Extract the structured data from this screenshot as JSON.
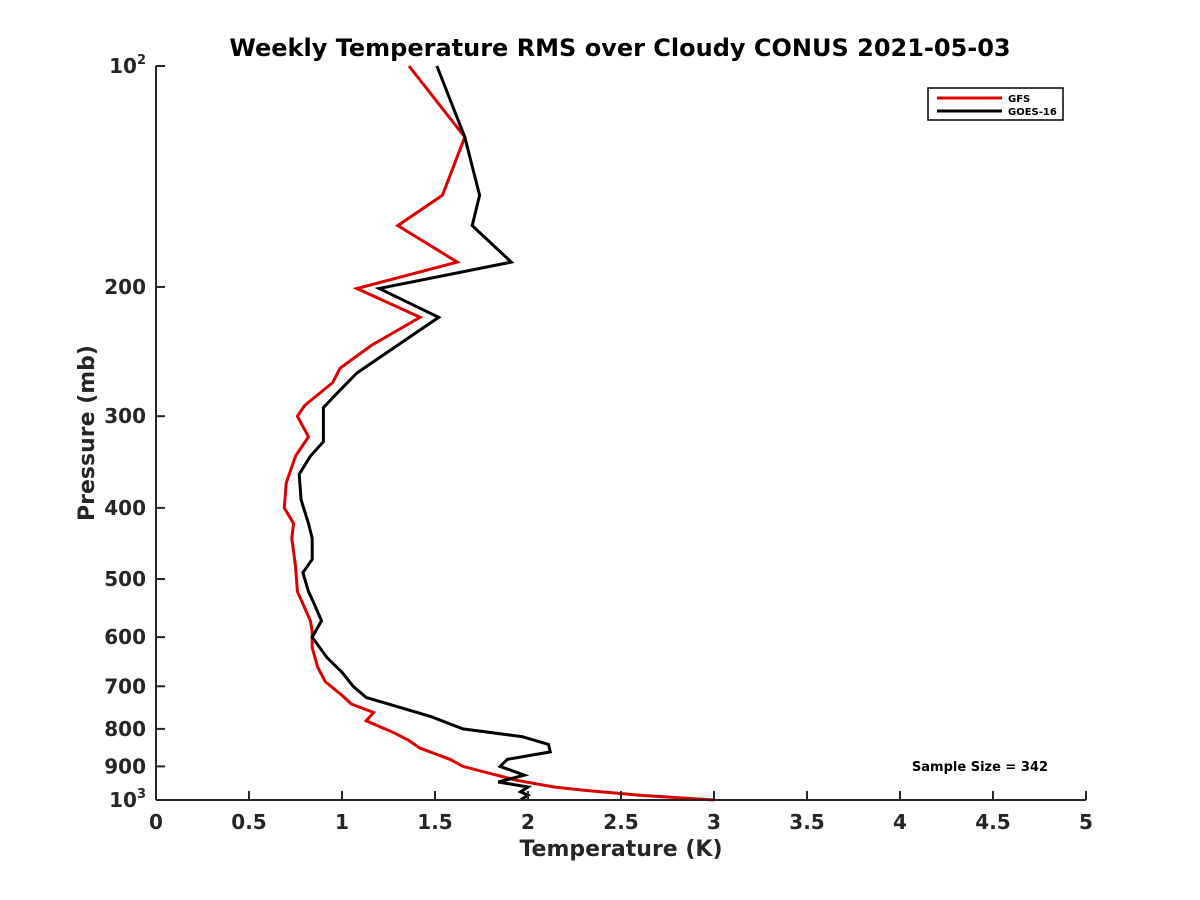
{
  "chart_data": {
    "type": "line",
    "title": "Weekly Temperature RMS over Cloudy CONUS 2021-05-03",
    "xlabel": "Temperature (K)",
    "ylabel": "Pressure (mb)",
    "xlim": [
      0,
      5
    ],
    "ylim": [
      100,
      1000
    ],
    "y_scale": "log",
    "y_reversed": true,
    "grid": false,
    "legend_position": "top-right",
    "x_ticks": [
      {
        "value": 0,
        "label": "0"
      },
      {
        "value": 0.5,
        "label": "0.5"
      },
      {
        "value": 1,
        "label": "1"
      },
      {
        "value": 1.5,
        "label": "1.5"
      },
      {
        "value": 2,
        "label": "2"
      },
      {
        "value": 2.5,
        "label": "2.5"
      },
      {
        "value": 3,
        "label": "3"
      },
      {
        "value": 3.5,
        "label": "3.5"
      },
      {
        "value": 4,
        "label": "4"
      },
      {
        "value": 4.5,
        "label": "4.5"
      },
      {
        "value": 5,
        "label": "5"
      }
    ],
    "y_ticks": [
      {
        "value": 100,
        "label": "10",
        "exp": "2"
      },
      {
        "value": 200,
        "label": "200"
      },
      {
        "value": 300,
        "label": "300"
      },
      {
        "value": 400,
        "label": "400"
      },
      {
        "value": 500,
        "label": "500"
      },
      {
        "value": 600,
        "label": "600"
      },
      {
        "value": 700,
        "label": "700"
      },
      {
        "value": 800,
        "label": "800"
      },
      {
        "value": 900,
        "label": "900"
      },
      {
        "value": 1000,
        "label": "10",
        "exp": "3"
      }
    ],
    "annotation": "Sample Size = 342",
    "series": [
      {
        "name": "GFS",
        "color": "#dd0000",
        "points": [
          [
            1.36,
            100
          ],
          [
            1.66,
            125
          ],
          [
            1.54,
            150
          ],
          [
            1.3,
            165
          ],
          [
            1.62,
            185
          ],
          [
            1.08,
            201
          ],
          [
            1.42,
            220
          ],
          [
            1.16,
            240
          ],
          [
            0.99,
            258
          ],
          [
            0.95,
            270
          ],
          [
            0.8,
            290
          ],
          [
            0.76,
            300
          ],
          [
            0.82,
            320
          ],
          [
            0.75,
            340
          ],
          [
            0.7,
            370
          ],
          [
            0.69,
            400
          ],
          [
            0.74,
            420
          ],
          [
            0.73,
            440
          ],
          [
            0.75,
            480
          ],
          [
            0.76,
            520
          ],
          [
            0.83,
            570
          ],
          [
            0.84,
            590
          ],
          [
            0.84,
            620
          ],
          [
            0.87,
            660
          ],
          [
            0.91,
            690
          ],
          [
            1.0,
            720
          ],
          [
            1.05,
            740
          ],
          [
            1.17,
            760
          ],
          [
            1.13,
            780
          ],
          [
            1.28,
            810
          ],
          [
            1.36,
            830
          ],
          [
            1.42,
            850
          ],
          [
            1.58,
            880
          ],
          [
            1.65,
            900
          ],
          [
            1.94,
            940
          ],
          [
            2.14,
            960
          ],
          [
            2.3,
            970
          ],
          [
            2.6,
            985
          ],
          [
            3.0,
            1000
          ]
        ]
      },
      {
        "name": "GOES-16",
        "color": "#000000",
        "points": [
          [
            1.51,
            100
          ],
          [
            1.66,
            125
          ],
          [
            1.74,
            150
          ],
          [
            1.7,
            165
          ],
          [
            1.91,
            185
          ],
          [
            1.2,
            201
          ],
          [
            1.52,
            220
          ],
          [
            1.3,
            240
          ],
          [
            1.08,
            262
          ],
          [
            0.98,
            278
          ],
          [
            0.9,
            292
          ],
          [
            0.9,
            305
          ],
          [
            0.9,
            325
          ],
          [
            0.83,
            340
          ],
          [
            0.77,
            360
          ],
          [
            0.78,
            390
          ],
          [
            0.82,
            420
          ],
          [
            0.84,
            440
          ],
          [
            0.84,
            470
          ],
          [
            0.79,
            490
          ],
          [
            0.82,
            520
          ],
          [
            0.85,
            540
          ],
          [
            0.89,
            570
          ],
          [
            0.84,
            600
          ],
          [
            0.92,
            640
          ],
          [
            1.0,
            670
          ],
          [
            1.06,
            700
          ],
          [
            1.13,
            725
          ],
          [
            1.48,
            770
          ],
          [
            1.65,
            800
          ],
          [
            1.97,
            820
          ],
          [
            2.11,
            840
          ],
          [
            2.12,
            860
          ],
          [
            1.89,
            880
          ],
          [
            1.85,
            900
          ],
          [
            1.98,
            925
          ],
          [
            1.84,
            945
          ],
          [
            2.0,
            960
          ],
          [
            1.96,
            975
          ],
          [
            2.0,
            985
          ],
          [
            1.96,
            1000
          ]
        ]
      }
    ]
  }
}
